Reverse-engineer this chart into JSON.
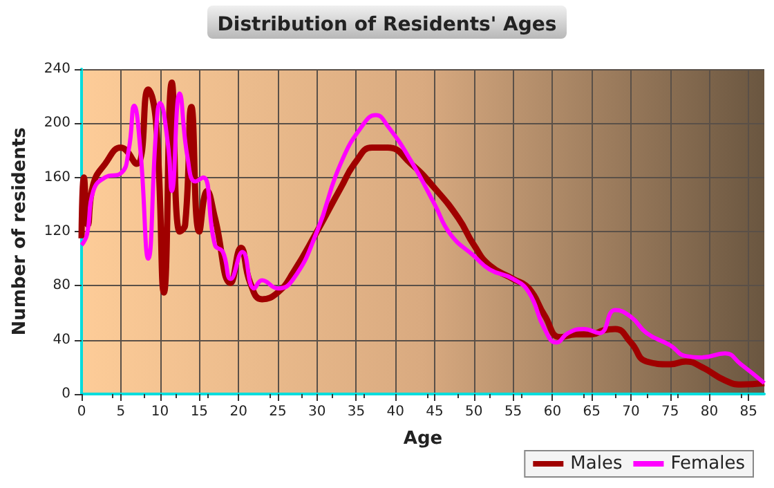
{
  "chart_data": {
    "type": "line",
    "title": "Distribution of Residents' Ages",
    "xlabel": "Age",
    "ylabel": "Number of residents",
    "xlim": [
      0,
      87
    ],
    "xticks": [
      0,
      5,
      10,
      15,
      20,
      25,
      30,
      35,
      40,
      45,
      50,
      55,
      60,
      65,
      70,
      75,
      80,
      85
    ],
    "ylim": [
      0,
      240
    ],
    "yticks": [
      0,
      40,
      80,
      120,
      160,
      200,
      240
    ],
    "grid": true,
    "legend": "bottom right",
    "marker": "none",
    "line_style": "solid",
    "series": [
      {
        "name": "Males",
        "color": "#a00000",
        "x": [
          0,
          0.3,
          0.8,
          1.5,
          3,
          5,
          7,
          8.5,
          9.5,
          10.5,
          11.5,
          12.5,
          13.2,
          14,
          15,
          16,
          17,
          19,
          20.3,
          21.5,
          23,
          25,
          27,
          30,
          33,
          35,
          37,
          39,
          42,
          45,
          48,
          50,
          52,
          55,
          57,
          59,
          61,
          63,
          65,
          66.5,
          68,
          70,
          72,
          75,
          77,
          79,
          82,
          84,
          87
        ],
        "values": [
          115,
          160,
          125,
          155,
          170,
          182,
          170,
          225,
          200,
          75,
          230,
          120,
          125,
          212,
          120,
          150,
          130,
          82,
          108,
          82,
          70,
          75,
          90,
          120,
          152,
          172,
          182,
          182,
          170,
          152,
          130,
          110,
          95,
          85,
          78,
          58,
          42,
          44,
          44,
          47,
          48,
          38,
          24,
          22,
          24,
          20,
          10,
          7,
          8
        ]
      },
      {
        "name": "Females",
        "color": "#ff00ff",
        "x": [
          0,
          0.7,
          1.5,
          3,
          5,
          6,
          6.7,
          7.5,
          8.5,
          9.5,
          10,
          11,
          11.5,
          12.5,
          13.5,
          14.5,
          15.5,
          17,
          18,
          19,
          20.5,
          22,
          23,
          25,
          27,
          30,
          33,
          36,
          37.5,
          39,
          42,
          45,
          47,
          50,
          52,
          55,
          57,
          59,
          60.5,
          62,
          64,
          66,
          68,
          70,
          72,
          75,
          77,
          79,
          82,
          84,
          87
        ],
        "values": [
          110,
          118,
          150,
          160,
          163,
          180,
          213,
          180,
          100,
          195,
          215,
          185,
          150,
          222,
          175,
          157,
          160,
          110,
          105,
          85,
          105,
          78,
          84,
          78,
          85,
          120,
          170,
          200,
          206,
          198,
          172,
          140,
          118,
          102,
          92,
          85,
          75,
          48,
          38,
          45,
          48,
          45,
          62,
          57,
          45,
          36,
          28,
          27,
          30,
          22,
          8
        ]
      }
    ]
  }
}
